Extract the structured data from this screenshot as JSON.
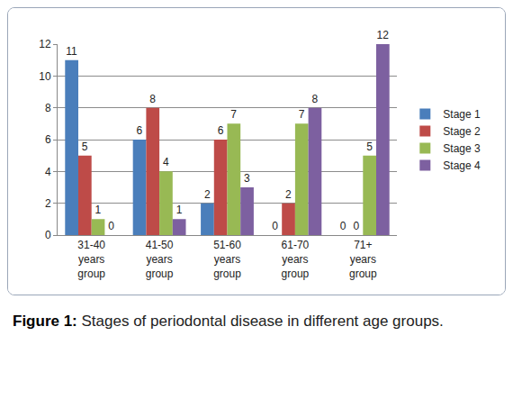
{
  "chart_data": {
    "type": "bar",
    "title": "Figure 1: Stages of periodontal disease in different age groups.",
    "categories": [
      "31-40 years group",
      "41-50 years group",
      "51-60 years group",
      "61-70 years group",
      "71+ years group"
    ],
    "series": [
      {
        "name": "Stage 1",
        "color": "#4a7ebb",
        "values": [
          11,
          6,
          2,
          0,
          0
        ]
      },
      {
        "name": "Stage 2",
        "color": "#be4b48",
        "values": [
          5,
          8,
          6,
          2,
          0
        ]
      },
      {
        "name": "Stage 3",
        "color": "#98b954",
        "values": [
          1,
          4,
          7,
          7,
          5
        ]
      },
      {
        "name": "Stage 4",
        "color": "#7d60a0",
        "values": [
          0,
          1,
          3,
          8,
          12
        ]
      }
    ],
    "ylim": [
      0,
      12
    ],
    "yticks": [
      0,
      2,
      4,
      6,
      8,
      10,
      12
    ],
    "grid": true,
    "legend": "right",
    "data_labels": true
  }
}
